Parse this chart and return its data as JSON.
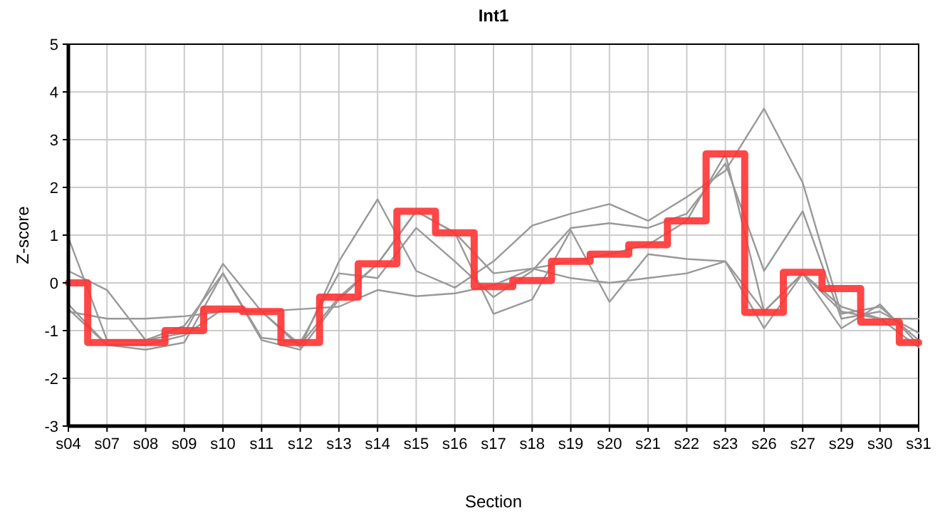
{
  "chart_data": {
    "type": "line",
    "title": "Int1",
    "xlabel": "Section",
    "ylabel": "Z-score",
    "categories": [
      "s04",
      "s07",
      "s08",
      "s09",
      "s10",
      "s11",
      "s12",
      "s13",
      "s14",
      "s15",
      "s16",
      "s17",
      "s18",
      "s19",
      "s20",
      "s21",
      "s22",
      "s23",
      "s26",
      "s27",
      "s29",
      "s30",
      "s31"
    ],
    "ylim": [
      -3,
      5
    ],
    "yticks": [
      -3,
      -2,
      -1,
      0,
      1,
      2,
      3,
      4,
      5
    ],
    "grid": true,
    "series": [
      {
        "color": "#999999",
        "values": [
          0.95,
          -1.2,
          -1.2,
          -1.05,
          0.4,
          -0.6,
          -1.35,
          0.45,
          1.75,
          0.25,
          -0.1,
          0.45,
          1.2,
          1.45,
          1.65,
          1.3,
          1.8,
          2.35,
          3.65,
          2.1,
          -0.65,
          -0.5,
          -1.2
        ]
      },
      {
        "color": "#999999",
        "values": [
          0.25,
          -0.15,
          -1.2,
          -0.9,
          0.2,
          -1.15,
          -1.25,
          0.2,
          0.1,
          1.15,
          0.45,
          -0.3,
          0.25,
          1.15,
          1.25,
          1.15,
          1.45,
          2.5,
          0.25,
          1.5,
          -0.75,
          -0.6,
          -1.05
        ]
      },
      {
        "color": "#999999",
        "values": [
          -0.45,
          -1.3,
          -1.4,
          -1.25,
          0.2,
          -1.2,
          -1.4,
          -0.35,
          0.4,
          1.5,
          1.05,
          -0.65,
          -0.35,
          1.1,
          -0.4,
          0.6,
          0.5,
          0.45,
          -0.95,
          0.2,
          -0.95,
          -0.45,
          -1.3
        ]
      },
      {
        "color": "#999999",
        "values": [
          -0.6,
          -0.75,
          -0.75,
          -0.7,
          -0.6,
          -0.6,
          -0.55,
          -0.5,
          -0.15,
          -0.28,
          -0.22,
          -0.05,
          0.3,
          0.1,
          0.0,
          0.1,
          0.2,
          0.45,
          -0.6,
          0.2,
          -0.6,
          -0.75,
          -0.75
        ]
      },
      {
        "color": "#999999",
        "values": [
          -0.55,
          -1.3,
          -1.3,
          -1.1,
          -0.55,
          -0.6,
          -1.3,
          -0.3,
          0.4,
          1.5,
          1.05,
          0.2,
          0.3,
          0.45,
          0.6,
          0.8,
          1.3,
          2.7,
          -0.6,
          0.2,
          -0.5,
          -0.75,
          -1.35
        ]
      },
      {
        "type": "step",
        "color": "#ff3333",
        "values": [
          0.0,
          -1.25,
          -1.25,
          -1.0,
          -0.55,
          -0.6,
          -1.25,
          -0.3,
          0.4,
          1.5,
          1.05,
          -0.08,
          0.05,
          0.45,
          0.6,
          0.8,
          1.3,
          2.7,
          -0.62,
          0.22,
          -0.12,
          -0.82,
          -1.25
        ]
      }
    ]
  }
}
